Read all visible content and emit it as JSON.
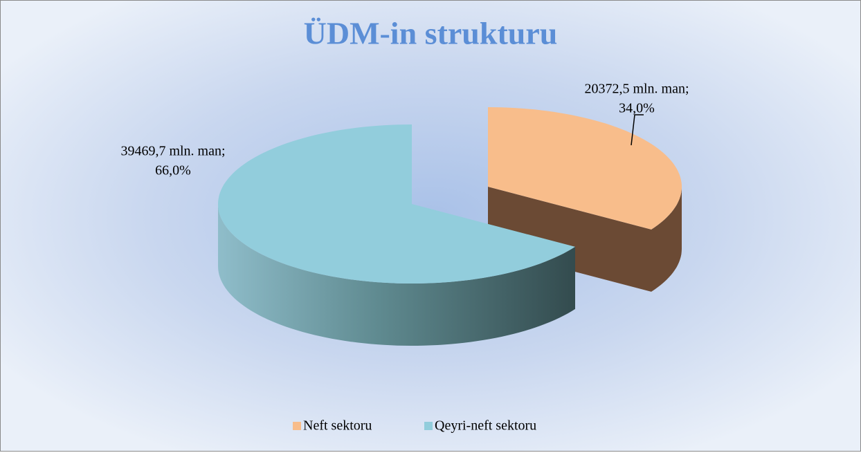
{
  "chart_data": {
    "type": "pie3d",
    "title": "ÜDM-in strukturu",
    "categories": [
      "Neft sektoru",
      "Qeyri-neft sektoru"
    ],
    "values": [
      20372.5,
      39469.7
    ],
    "value_labels": [
      "20372,5 mln. man;",
      "39469,7 mln. man;"
    ],
    "percent_values": [
      34.0,
      66.0
    ],
    "percent_labels": [
      "34,0%",
      "66,0%"
    ],
    "colors": [
      "#f8bd8b",
      "#92cddc"
    ],
    "side_colors": [
      "#6b4a34",
      "#4e7479"
    ],
    "legend": "bottom"
  }
}
